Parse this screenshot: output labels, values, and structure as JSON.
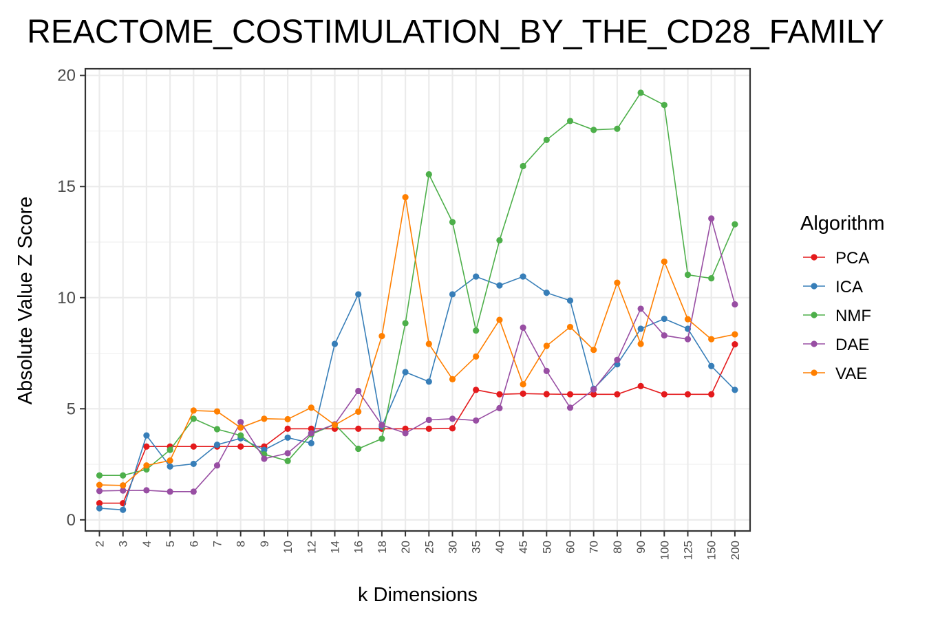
{
  "chart_data": {
    "type": "line",
    "title": "REACTOME_COSTIMULATION_BY_THE_CD28_FAMILY",
    "xlabel": "k Dimensions",
    "ylabel": "Absolute Value Z Score",
    "ylim": [
      -0.5,
      20.3
    ],
    "yticks": [
      0,
      5,
      10,
      15,
      20
    ],
    "ytick_labels": [
      "0",
      "5",
      "10",
      "15",
      "20"
    ],
    "grid": true,
    "legend_placement": "right",
    "legend_title": "Algorithm",
    "categories": [
      "2",
      "3",
      "4",
      "5",
      "6",
      "7",
      "8",
      "9",
      "10",
      "12",
      "14",
      "16",
      "18",
      "20",
      "25",
      "30",
      "35",
      "40",
      "45",
      "50",
      "60",
      "70",
      "80",
      "90",
      "100",
      "125",
      "150",
      "200"
    ],
    "series": [
      {
        "name": "PCA",
        "color": "#E41A1C",
        "values": [
          0.75,
          0.75,
          3.3,
          3.3,
          3.3,
          3.3,
          3.3,
          3.3,
          4.1,
          4.1,
          4.1,
          4.1,
          4.1,
          4.1,
          4.1,
          4.12,
          5.85,
          5.65,
          5.68,
          5.66,
          5.65,
          5.65,
          5.65,
          6.02,
          5.65,
          5.65,
          5.65,
          7.9
        ]
      },
      {
        "name": "ICA",
        "color": "#377EB8",
        "values": [
          0.52,
          0.45,
          3.8,
          2.4,
          2.52,
          3.38,
          3.67,
          3.15,
          3.7,
          3.45,
          7.92,
          10.15,
          4.2,
          6.65,
          6.22,
          10.15,
          10.95,
          10.55,
          10.95,
          10.22,
          9.87,
          5.9,
          7.0,
          8.6,
          9.05,
          8.6,
          6.92,
          5.85
        ]
      },
      {
        "name": "NMF",
        "color": "#4DAF4A",
        "values": [
          2.0,
          2.0,
          2.27,
          3.15,
          4.55,
          4.08,
          3.8,
          2.95,
          2.65,
          3.85,
          4.3,
          3.2,
          3.65,
          8.85,
          15.55,
          13.4,
          8.52,
          12.58,
          15.92,
          17.1,
          17.95,
          17.55,
          17.6,
          19.22,
          18.67,
          11.03,
          10.87,
          13.3
        ]
      },
      {
        "name": "DAE",
        "color": "#984EA3",
        "values": [
          1.3,
          1.32,
          1.33,
          1.27,
          1.27,
          2.45,
          4.4,
          2.75,
          3.0,
          3.9,
          4.3,
          5.8,
          4.27,
          3.9,
          4.5,
          4.55,
          4.47,
          5.03,
          8.65,
          6.7,
          5.05,
          5.87,
          7.2,
          9.5,
          8.3,
          8.13,
          13.56,
          9.7
        ]
      },
      {
        "name": "VAE",
        "color": "#FF7F00",
        "values": [
          1.57,
          1.55,
          2.45,
          2.67,
          4.92,
          4.88,
          4.15,
          4.55,
          4.53,
          5.05,
          4.27,
          4.87,
          8.27,
          14.52,
          7.92,
          6.33,
          7.35,
          9.0,
          6.1,
          7.83,
          8.68,
          7.65,
          10.67,
          7.92,
          11.62,
          9.03,
          8.13,
          8.35
        ]
      }
    ]
  }
}
